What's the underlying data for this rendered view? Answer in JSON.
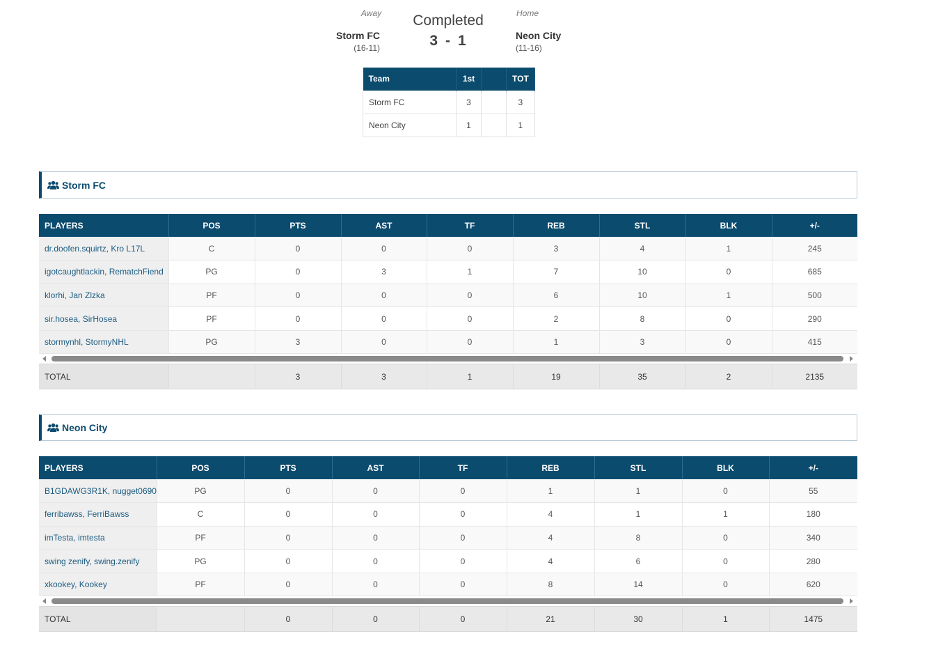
{
  "game": {
    "away_label": "Away",
    "home_label": "Home",
    "status": "Completed",
    "away_team": "Storm FC",
    "away_record": "(16-11)",
    "home_team": "Neon City",
    "home_record": "(11-16)",
    "away_score": "3",
    "score_sep": "-",
    "home_score": "1"
  },
  "linescore": {
    "headers": [
      "Team",
      "1st",
      "",
      "TOT"
    ],
    "rows": [
      [
        "Storm FC",
        "3",
        "",
        "3"
      ],
      [
        "Neon City",
        "1",
        "",
        "1"
      ]
    ]
  },
  "columns": [
    "PLAYERS",
    "POS",
    "PTS",
    "AST",
    "TF",
    "REB",
    "STL",
    "BLK",
    "+/-"
  ],
  "teams": [
    {
      "name": "Storm FC",
      "icon": "users-icon",
      "players": [
        [
          "dr.doofen.squirtz, Kro L17L",
          "C",
          "0",
          "0",
          "0",
          "3",
          "4",
          "1",
          "245"
        ],
        [
          "igotcaughtlackin, RematchFiend",
          "PG",
          "0",
          "3",
          "1",
          "7",
          "10",
          "0",
          "685"
        ],
        [
          "klorhi, Jan Zlzka",
          "PF",
          "0",
          "0",
          "0",
          "6",
          "10",
          "1",
          "500"
        ],
        [
          "sir.hosea, SirHosea",
          "PF",
          "0",
          "0",
          "0",
          "2",
          "8",
          "0",
          "290"
        ],
        [
          "stormynhl, StormyNHL",
          "PG",
          "3",
          "0",
          "0",
          "1",
          "3",
          "0",
          "415"
        ]
      ],
      "total": [
        "TOTAL",
        "",
        "3",
        "3",
        "1",
        "19",
        "35",
        "2",
        "2135"
      ]
    },
    {
      "name": "Neon City",
      "icon": "users-icon",
      "players": [
        [
          "B1GDAWG3R1K, nugget0690",
          "PG",
          "0",
          "0",
          "0",
          "1",
          "1",
          "0",
          "55"
        ],
        [
          "ferribawss, FerriBawss",
          "C",
          "0",
          "0",
          "0",
          "4",
          "1",
          "1",
          "180"
        ],
        [
          "imTesta, imtesta",
          "PF",
          "0",
          "0",
          "0",
          "4",
          "8",
          "0",
          "340"
        ],
        [
          "swing zenify, swing.zenify",
          "PG",
          "0",
          "0",
          "0",
          "4",
          "6",
          "0",
          "280"
        ],
        [
          "xkookey, Kookey",
          "PF",
          "0",
          "0",
          "0",
          "8",
          "14",
          "0",
          "620"
        ]
      ],
      "total": [
        "TOTAL",
        "",
        "0",
        "0",
        "0",
        "21",
        "30",
        "1",
        "1475"
      ]
    }
  ],
  "colors": {
    "header_bg": "#0b4b6e",
    "player_link": "#1d5d82",
    "team_title": "#0b4b6e"
  }
}
